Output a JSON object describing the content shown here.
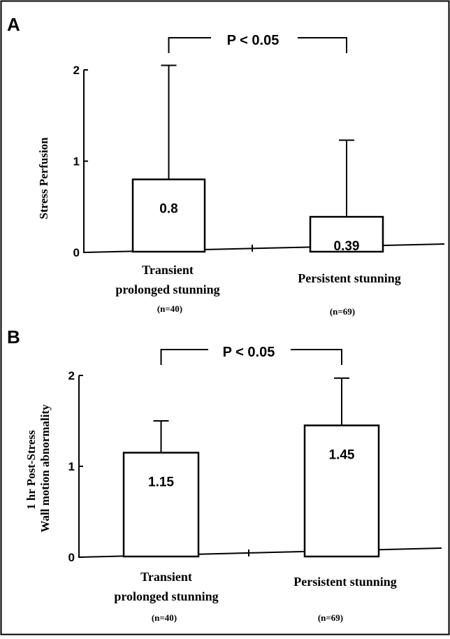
{
  "chart_data": [
    {
      "type": "bar",
      "panel": "A",
      "ylabel_lines": [
        "Stress Perfusion"
      ],
      "ylim": [
        0,
        2
      ],
      "yticks": [
        0,
        1,
        2
      ],
      "categories": [
        {
          "lines": [
            "Transient",
            "prolonged stunning"
          ],
          "n": "(n=40)"
        },
        {
          "lines": [
            "Persistent stunning"
          ],
          "n": "(n=69)"
        }
      ],
      "values": [
        0.8,
        0.39
      ],
      "value_labels": [
        "0.8",
        "0.39"
      ],
      "error_upper": [
        2.05,
        1.23
      ],
      "significance": "P < 0.05"
    },
    {
      "type": "bar",
      "panel": "B",
      "ylabel_lines": [
        "1 hr Post-Stress",
        "Wall motion abnormality"
      ],
      "ylim": [
        0,
        2
      ],
      "yticks": [
        0,
        1,
        2
      ],
      "categories": [
        {
          "lines": [
            "Transient",
            "prolonged stunning"
          ],
          "n": "(n=40)"
        },
        {
          "lines": [
            "Persistent stunning"
          ],
          "n": "(n=69)"
        }
      ],
      "values": [
        1.15,
        1.45
      ],
      "value_labels": [
        "1.15",
        "1.45"
      ],
      "error_upper": [
        1.5,
        1.97
      ],
      "significance": "P < 0.05"
    }
  ]
}
